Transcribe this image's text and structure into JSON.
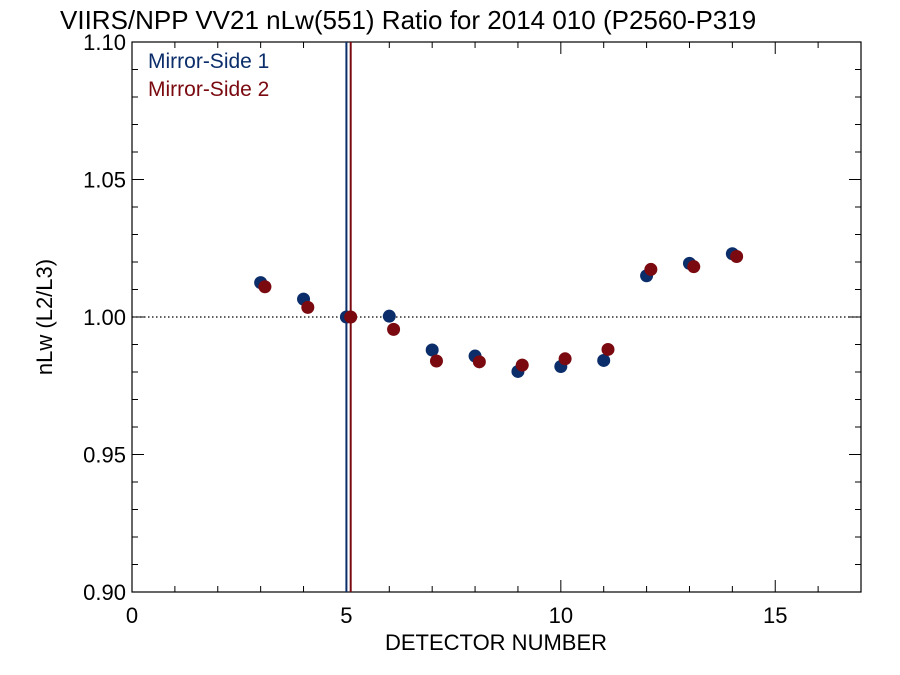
{
  "chart_data": {
    "type": "scatter",
    "title": "VIIRS/NPP VV21 nLw(551) Ratio for 2014 010 (P2560-P319",
    "xlabel": "DETECTOR NUMBER",
    "ylabel": "nLw (L2/L3)",
    "xlim": [
      0,
      17
    ],
    "ylim": [
      0.9,
      1.1
    ],
    "x_ticks": [
      0,
      5,
      10,
      15
    ],
    "x_tick_labels": [
      "0",
      "5",
      "10",
      "15"
    ],
    "y_ticks": [
      0.9,
      0.95,
      1.0,
      1.05,
      1.1
    ],
    "y_tick_labels": [
      "0.90",
      "0.95",
      "1.00",
      "1.05",
      "1.10"
    ],
    "reference_line_y": 1.0,
    "reference_line_style": "dotted",
    "legend_position": "top-left",
    "series": [
      {
        "name": "Mirror-Side 1",
        "color": "#0b2e6b",
        "x": [
          3,
          4,
          5,
          6,
          7,
          8,
          9,
          10,
          11,
          12,
          13,
          14
        ],
        "y": [
          1.0125,
          1.0065,
          1.0,
          1.0003,
          0.988,
          0.9858,
          0.9802,
          0.982,
          0.9842,
          1.015,
          1.0195,
          1.023
        ],
        "vline_x": 5.0
      },
      {
        "name": "Mirror-Side 2",
        "color": "#7a0a10",
        "x": [
          3.1,
          4.1,
          5.1,
          6.1,
          7.1,
          8.1,
          9.1,
          10.1,
          11.1,
          12.1,
          13.1,
          14.1
        ],
        "y": [
          1.011,
          1.0035,
          1.0,
          0.9955,
          0.984,
          0.9837,
          0.9825,
          0.9848,
          0.9882,
          1.0173,
          1.0183,
          1.022
        ],
        "vline_x": 5.1
      }
    ]
  }
}
